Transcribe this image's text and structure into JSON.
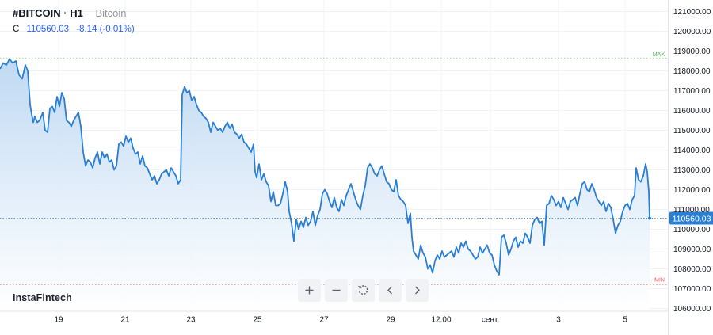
{
  "header": {
    "symbol": "#BITCOIN · H1",
    "description": "Bitcoin",
    "close_label": "C",
    "close_value": "110560.03",
    "change": "-8.14 (-0.01%)"
  },
  "brand": "InstaFintech",
  "toolbar": [
    {
      "name": "zoom-in-button",
      "icon": "plus-icon"
    },
    {
      "name": "zoom-out-button",
      "icon": "minus-icon"
    },
    {
      "name": "reset-button",
      "icon": "reset-icon"
    },
    {
      "name": "scroll-left-button",
      "icon": "chevron-left-icon"
    },
    {
      "name": "scroll-right-button",
      "icon": "chevron-right-icon"
    }
  ],
  "colors": {
    "line": "#2a7fd4",
    "area_top": "#bcd7f2",
    "area_bottom": "#ffffff",
    "max_line": "#4caf50",
    "min_line": "#ef5350",
    "last_price_bg": "#2a7fd4"
  },
  "chart_data": {
    "type": "area",
    "y_ticks": [
      "121000.00",
      "120000.00",
      "119000.00",
      "118000.00",
      "117000.00",
      "116000.00",
      "115000.00",
      "114000.00",
      "113000.00",
      "112000.00",
      "111000.00",
      "110000.00",
      "109000.00",
      "108000.00",
      "107000.00",
      "106000.00"
    ],
    "x_ticks": [
      "19",
      "21",
      "23",
      "25",
      "27",
      "29",
      "12:00",
      "сент.",
      "3",
      "5"
    ],
    "ylim": [
      106000,
      121000
    ],
    "max_label": "MAX",
    "max_value": 118650,
    "min_label": "MIN",
    "min_value": 107200,
    "last_value": 110560.03,
    "last_value_label": "110560.03",
    "grid": true,
    "points": [
      [
        0,
        118100
      ],
      [
        4,
        118400
      ],
      [
        8,
        118300
      ],
      [
        12,
        118600
      ],
      [
        16,
        118400
      ],
      [
        20,
        118500
      ],
      [
        24,
        117800
      ],
      [
        28,
        117600
      ],
      [
        32,
        118300
      ],
      [
        35,
        118000
      ],
      [
        38,
        116300
      ],
      [
        40,
        115800
      ],
      [
        42,
        115400
      ],
      [
        44,
        115700
      ],
      [
        47,
        115400
      ],
      [
        50,
        115500
      ],
      [
        54,
        115900
      ],
      [
        57,
        115000
      ],
      [
        60,
        114900
      ],
      [
        63,
        116100
      ],
      [
        66,
        116200
      ],
      [
        69,
        115900
      ],
      [
        72,
        116700
      ],
      [
        75,
        116200
      ],
      [
        78,
        116900
      ],
      [
        81,
        116600
      ],
      [
        84,
        115500
      ],
      [
        87,
        115400
      ],
      [
        90,
        115200
      ],
      [
        93,
        115500
      ],
      [
        96,
        115700
      ],
      [
        99,
        115900
      ],
      [
        102,
        115200
      ],
      [
        105,
        113900
      ],
      [
        108,
        113200
      ],
      [
        111,
        113500
      ],
      [
        114,
        113400
      ],
      [
        117,
        113100
      ],
      [
        120,
        113600
      ],
      [
        123,
        113900
      ],
      [
        126,
        113300
      ],
      [
        129,
        113900
      ],
      [
        132,
        113600
      ],
      [
        135,
        113800
      ],
      [
        138,
        113400
      ],
      [
        141,
        113500
      ],
      [
        144,
        113000
      ],
      [
        147,
        113200
      ],
      [
        150,
        114300
      ],
      [
        153,
        114400
      ],
      [
        156,
        114200
      ],
      [
        159,
        114700
      ],
      [
        162,
        114400
      ],
      [
        165,
        114600
      ],
      [
        168,
        114100
      ],
      [
        171,
        113800
      ],
      [
        174,
        113900
      ],
      [
        177,
        113300
      ],
      [
        180,
        113700
      ],
      [
        183,
        113200
      ],
      [
        186,
        113100
      ],
      [
        189,
        112800
      ],
      [
        192,
        112500
      ],
      [
        195,
        112700
      ],
      [
        198,
        112300
      ],
      [
        201,
        112500
      ],
      [
        204,
        112800
      ],
      [
        207,
        112900
      ],
      [
        210,
        113000
      ],
      [
        213,
        112700
      ],
      [
        216,
        113100
      ],
      [
        219,
        112900
      ],
      [
        222,
        112700
      ],
      [
        225,
        112300
      ],
      [
        228,
        112500
      ],
      [
        230,
        116800
      ],
      [
        233,
        117200
      ],
      [
        236,
        116900
      ],
      [
        239,
        117000
      ],
      [
        242,
        116500
      ],
      [
        245,
        116700
      ],
      [
        248,
        116300
      ],
      [
        251,
        116000
      ],
      [
        254,
        115900
      ],
      [
        257,
        115700
      ],
      [
        260,
        115600
      ],
      [
        263,
        115400
      ],
      [
        266,
        114900
      ],
      [
        269,
        115400
      ],
      [
        272,
        115200
      ],
      [
        275,
        115000
      ],
      [
        278,
        115100
      ],
      [
        281,
        114900
      ],
      [
        284,
        115200
      ],
      [
        287,
        115400
      ],
      [
        290,
        115100
      ],
      [
        293,
        115300
      ],
      [
        296,
        114900
      ],
      [
        299,
        114800
      ],
      [
        302,
        114600
      ],
      [
        305,
        114800
      ],
      [
        308,
        114400
      ],
      [
        311,
        114300
      ],
      [
        314,
        114100
      ],
      [
        317,
        113900
      ],
      [
        320,
        114300
      ],
      [
        322,
        112900
      ],
      [
        324,
        112600
      ],
      [
        327,
        113300
      ],
      [
        330,
        112500
      ],
      [
        333,
        112800
      ],
      [
        336,
        112400
      ],
      [
        339,
        112200
      ],
      [
        342,
        111400
      ],
      [
        345,
        111900
      ],
      [
        348,
        111200
      ],
      [
        351,
        111200
      ],
      [
        354,
        111300
      ],
      [
        357,
        111800
      ],
      [
        360,
        112400
      ],
      [
        363,
        111900
      ],
      [
        365,
        110900
      ],
      [
        368,
        110300
      ],
      [
        371,
        109400
      ],
      [
        374,
        110500
      ],
      [
        377,
        110000
      ],
      [
        380,
        110400
      ],
      [
        383,
        110100
      ],
      [
        386,
        110600
      ],
      [
        389,
        110200
      ],
      [
        392,
        110400
      ],
      [
        395,
        110900
      ],
      [
        398,
        110200
      ],
      [
        401,
        110700
      ],
      [
        404,
        111000
      ],
      [
        407,
        111800
      ],
      [
        410,
        112000
      ],
      [
        413,
        111800
      ],
      [
        416,
        111400
      ],
      [
        419,
        111100
      ],
      [
        422,
        111600
      ],
      [
        425,
        111100
      ],
      [
        428,
        110900
      ],
      [
        431,
        111500
      ],
      [
        434,
        111200
      ],
      [
        437,
        111700
      ],
      [
        440,
        112000
      ],
      [
        443,
        112300
      ],
      [
        446,
        111900
      ],
      [
        449,
        111500
      ],
      [
        452,
        111200
      ],
      [
        455,
        111000
      ],
      [
        458,
        111700
      ],
      [
        461,
        112200
      ],
      [
        464,
        113100
      ],
      [
        467,
        113300
      ],
      [
        470,
        113100
      ],
      [
        473,
        112800
      ],
      [
        476,
        112700
      ],
      [
        479,
        113000
      ],
      [
        482,
        113200
      ],
      [
        485,
        112800
      ],
      [
        488,
        112400
      ],
      [
        491,
        112300
      ],
      [
        494,
        112000
      ],
      [
        497,
        111900
      ],
      [
        500,
        112500
      ],
      [
        503,
        111700
      ],
      [
        506,
        111500
      ],
      [
        509,
        111400
      ],
      [
        512,
        111200
      ],
      [
        515,
        110300
      ],
      [
        518,
        110800
      ],
      [
        520,
        109600
      ],
      [
        522,
        108900
      ],
      [
        525,
        108700
      ],
      [
        528,
        108500
      ],
      [
        531,
        109200
      ],
      [
        534,
        108800
      ],
      [
        537,
        108600
      ],
      [
        540,
        108000
      ],
      [
        543,
        108200
      ],
      [
        546,
        107800
      ],
      [
        549,
        108400
      ],
      [
        552,
        108700
      ],
      [
        555,
        108500
      ],
      [
        558,
        108900
      ],
      [
        561,
        108600
      ],
      [
        564,
        108700
      ],
      [
        567,
        108800
      ],
      [
        570,
        108900
      ],
      [
        573,
        108600
      ],
      [
        576,
        109100
      ],
      [
        579,
        108800
      ],
      [
        582,
        109300
      ],
      [
        585,
        109100
      ],
      [
        588,
        109400
      ],
      [
        591,
        109000
      ],
      [
        594,
        108900
      ],
      [
        597,
        108700
      ],
      [
        600,
        108500
      ],
      [
        603,
        108600
      ],
      [
        606,
        109100
      ],
      [
        609,
        108800
      ],
      [
        612,
        109000
      ],
      [
        615,
        109200
      ],
      [
        618,
        108800
      ],
      [
        621,
        108700
      ],
      [
        624,
        108200
      ],
      [
        627,
        107900
      ],
      [
        630,
        107700
      ],
      [
        633,
        109600
      ],
      [
        636,
        109700
      ],
      [
        639,
        109300
      ],
      [
        642,
        108700
      ],
      [
        645,
        109000
      ],
      [
        648,
        109400
      ],
      [
        651,
        109600
      ],
      [
        654,
        109100
      ],
      [
        657,
        109400
      ],
      [
        660,
        109300
      ],
      [
        663,
        109800
      ],
      [
        666,
        109600
      ],
      [
        669,
        109300
      ],
      [
        672,
        110200
      ],
      [
        675,
        110500
      ],
      [
        678,
        110600
      ],
      [
        681,
        110300
      ],
      [
        684,
        110400
      ],
      [
        687,
        109200
      ],
      [
        690,
        111200
      ],
      [
        693,
        111300
      ],
      [
        696,
        111700
      ],
      [
        699,
        111500
      ],
      [
        702,
        111200
      ],
      [
        705,
        111400
      ],
      [
        708,
        111100
      ],
      [
        711,
        111600
      ],
      [
        714,
        111300
      ],
      [
        717,
        111000
      ],
      [
        720,
        111400
      ],
      [
        723,
        111500
      ],
      [
        726,
        111600
      ],
      [
        729,
        111200
      ],
      [
        732,
        111800
      ],
      [
        735,
        112300
      ],
      [
        738,
        112400
      ],
      [
        741,
        112000
      ],
      [
        744,
        111900
      ],
      [
        747,
        112300
      ],
      [
        750,
        112000
      ],
      [
        753,
        111600
      ],
      [
        756,
        111400
      ],
      [
        759,
        111200
      ],
      [
        762,
        111400
      ],
      [
        765,
        110900
      ],
      [
        768,
        111300
      ],
      [
        771,
        111100
      ],
      [
        774,
        110500
      ],
      [
        777,
        109800
      ],
      [
        780,
        110200
      ],
      [
        783,
        110400
      ],
      [
        786,
        110900
      ],
      [
        789,
        111200
      ],
      [
        792,
        111300
      ],
      [
        795,
        111000
      ],
      [
        798,
        111500
      ],
      [
        801,
        111700
      ],
      [
        803,
        113100
      ],
      [
        806,
        112500
      ],
      [
        809,
        112400
      ],
      [
        812,
        112700
      ],
      [
        815,
        113300
      ],
      [
        817,
        112900
      ],
      [
        819,
        111900
      ],
      [
        820,
        110560
      ]
    ]
  }
}
